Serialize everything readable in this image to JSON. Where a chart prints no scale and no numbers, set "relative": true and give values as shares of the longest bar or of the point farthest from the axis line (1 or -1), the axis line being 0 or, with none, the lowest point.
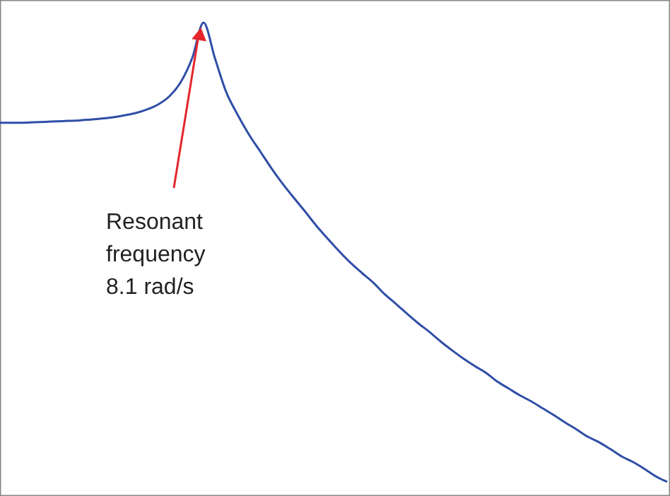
{
  "chart_data": {
    "type": "line",
    "relative": true,
    "categories": [
      null,
      null,
      null,
      null,
      null,
      null,
      null,
      null,
      null,
      null,
      null,
      null,
      null,
      null,
      null,
      null,
      null,
      null,
      null,
      null,
      null,
      null,
      null,
      null,
      null,
      null,
      null,
      null,
      null,
      null,
      null,
      null,
      null,
      null,
      null,
      null,
      null,
      null,
      null,
      null,
      null,
      null,
      null,
      null,
      null,
      null,
      null,
      null,
      null,
      null,
      null,
      null,
      null,
      null,
      null,
      null,
      null,
      null,
      null,
      null
    ],
    "series": [
      {
        "color": "#2f4ea6",
        "values": [
          0.782,
          0.782,
          0.782,
          0.783,
          0.784,
          0.785,
          0.786,
          0.787,
          0.789,
          0.791,
          0.794,
          0.798,
          0.803,
          0.811,
          0.822,
          0.84,
          0.871,
          0.923,
          1,
          0.923,
          0.849,
          0.8,
          0.757,
          0.72,
          0.683,
          0.649,
          0.618,
          0.588,
          0.557,
          0.529,
          0.502,
          0.477,
          0.455,
          0.434,
          0.409,
          0.388,
          0.366,
          0.345,
          0.326,
          0.305,
          0.286,
          0.268,
          0.252,
          0.237,
          0.218,
          0.203,
          0.188,
          0.175,
          0.16,
          0.145,
          0.129,
          0.114,
          0.098,
          0.086,
          0.071,
          0.055,
          0.043,
          0.028,
          0.012,
          0
        ]
      }
    ],
    "annotations": [
      "Resonant\nfrequency\n8.1 rad/s"
    ],
    "grid": false,
    "marker": "none",
    "line_style": "solid"
  }
}
